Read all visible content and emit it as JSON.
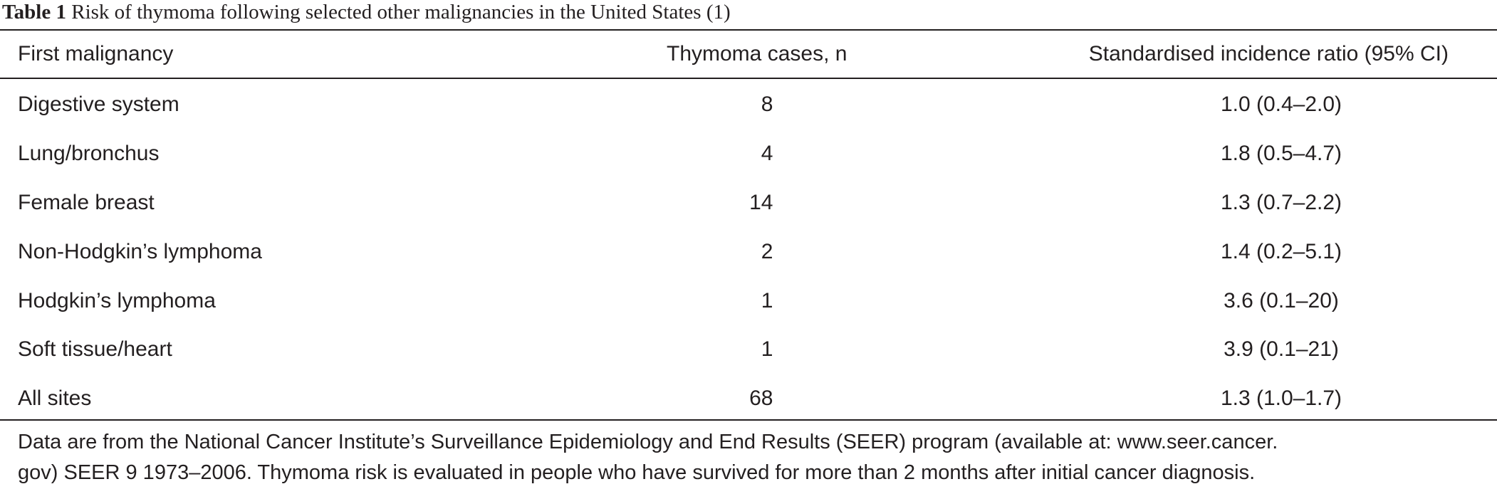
{
  "caption": {
    "label": "Table 1",
    "text": " Risk of thymoma following selected other malignancies in the United States (1)"
  },
  "table": {
    "headers": [
      "First malignancy",
      "Thymoma cases, n",
      "Standardised incidence ratio (95% CI)"
    ],
    "rows": [
      {
        "malignancy": "Digestive system",
        "cases": "8",
        "sir": "1.0 (0.4–2.0)"
      },
      {
        "malignancy": "Lung/bronchus",
        "cases": "4",
        "sir": "1.8 (0.5–4.7)"
      },
      {
        "malignancy": "Female breast",
        "cases": "14",
        "sir": "1.3 (0.7–2.2)"
      },
      {
        "malignancy": "Non-Hodgkin’s lymphoma",
        "cases": "2",
        "sir": "1.4 (0.2–5.1)"
      },
      {
        "malignancy": "Hodgkin’s lymphoma",
        "cases": "1",
        "sir": "3.6 (0.1–20)"
      },
      {
        "malignancy": "Soft tissue/heart",
        "cases": "1",
        "sir": "3.9 (0.1–21)"
      },
      {
        "malignancy": "All sites",
        "cases": "68",
        "sir": "1.3 (1.0–1.7)"
      }
    ]
  },
  "footnote": {
    "line1": "Data are from the National Cancer Institute’s Surveillance Epidemiology and End Results (SEER) program (available at: www.seer.cancer.",
    "line2": "gov) SEER 9 1973–2006. Thymoma risk is evaluated in people who have survived for more than 2 months after initial cancer diagnosis."
  }
}
